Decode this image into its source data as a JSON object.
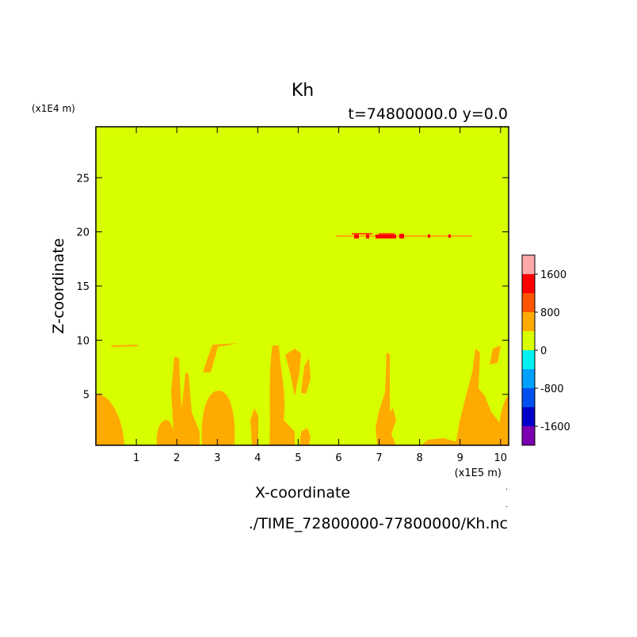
{
  "chart_data": {
    "type": "heatmap",
    "title": "Kh",
    "subtitle": "t=74800000.0 y=0.0",
    "xlabel": "X-coordinate",
    "ylabel": "Z-coordinate",
    "x_scale_label": "(x1E5 m)",
    "y_scale_label": "(x1E4 m)",
    "footer": "./TIME_72800000-77800000/Kh.nc",
    "xlim": [
      0,
      10.2
    ],
    "ylim": [
      0.3,
      29.7
    ],
    "x_ticks": [
      1,
      2,
      3,
      4,
      5,
      6,
      7,
      8,
      9,
      10
    ],
    "y_ticks": [
      5,
      10,
      15,
      20,
      25
    ],
    "background_level": "0 to 400",
    "colorbar": {
      "labels": [
        "1600",
        "800",
        "0",
        "-800",
        "-1600"
      ],
      "label_values": [
        1600,
        800,
        0,
        -800,
        -1600
      ],
      "levels": [
        {
          "min": -2000,
          "max": -1600,
          "color": "#7a00b0"
        },
        {
          "min": -1600,
          "max": -1200,
          "color": "#0000c8"
        },
        {
          "min": -1200,
          "max": -800,
          "color": "#0050f0"
        },
        {
          "min": -800,
          "max": -400,
          "color": "#00a0ff"
        },
        {
          "min": -400,
          "max": 0,
          "color": "#00f0f0"
        },
        {
          "min": 0,
          "max": 400,
          "color": "#d8ff00"
        },
        {
          "min": 400,
          "max": 800,
          "color": "#ffaa00"
        },
        {
          "min": 800,
          "max": 1200,
          "color": "#ff5500"
        },
        {
          "min": 1200,
          "max": 1600,
          "color": "#ff0000"
        },
        {
          "min": 1600,
          "max": 2000,
          "color": "#ffaaaa"
        }
      ]
    },
    "features": [
      {
        "level": "400 to 800",
        "x": [
          0.0,
          0.7
        ],
        "z": [
          0.3,
          5.0
        ]
      },
      {
        "level": "400 to 800",
        "x": [
          1.5,
          2.0
        ],
        "z": [
          0.3,
          3.0
        ]
      },
      {
        "level": "400 to 800",
        "x": [
          1.9,
          2.6
        ],
        "z": [
          0.3,
          8.2
        ]
      },
      {
        "level": "400 to 800",
        "x": [
          2.6,
          3.9
        ],
        "z": [
          0.3,
          9.7
        ]
      },
      {
        "level": "400 to 800",
        "x": [
          3.9,
          5.3
        ],
        "z": [
          0.3,
          9.6
        ]
      },
      {
        "level": "400 to 800",
        "x": [
          6.8,
          7.7
        ],
        "z": [
          0.3,
          8.6
        ]
      },
      {
        "level": "400 to 800",
        "x": [
          8.2,
          9.2
        ],
        "z": [
          0.3,
          1.0
        ]
      },
      {
        "level": "400 to 800",
        "x": [
          9.0,
          10.2
        ],
        "z": [
          0.3,
          9.5
        ]
      },
      {
        "level": "400 to 800",
        "x": [
          0.3,
          1.1
        ],
        "z": [
          9.3,
          9.6
        ]
      },
      {
        "level": "800 to 1600",
        "x": [
          6.3,
          9.3
        ],
        "z": [
          19.2,
          19.8
        ]
      }
    ]
  }
}
